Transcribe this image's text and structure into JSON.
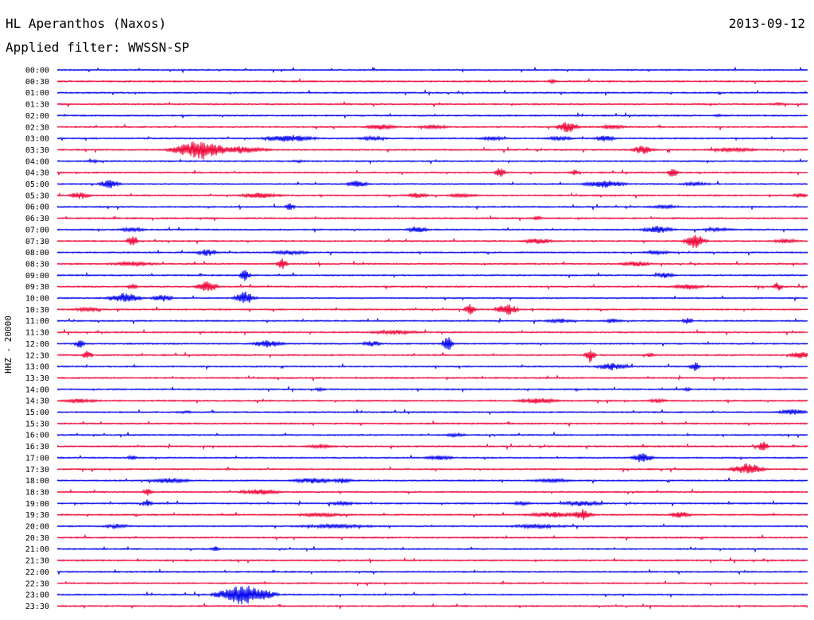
{
  "header": {
    "station": "HL Aperanthos (Naxos)",
    "date": "2013-09-12",
    "filter": "Applied filter: WWSSN-SP"
  },
  "chart_data": {
    "type": "line",
    "title": "HL Aperanthos (Naxos)",
    "ylabel": "HHZ - 20000",
    "colors": {
      "blue": "#0000ee",
      "red": "#ee0033"
    },
    "rows": [
      {
        "time": "00:00",
        "color": "blue",
        "events": []
      },
      {
        "time": "00:30",
        "color": "red",
        "events": [
          {
            "x": 0.66,
            "amp": 3,
            "w": 0.01
          }
        ]
      },
      {
        "time": "01:00",
        "color": "blue",
        "events": []
      },
      {
        "time": "01:30",
        "color": "red",
        "events": [
          {
            "x": 0.96,
            "amp": 2,
            "w": 0.02
          }
        ]
      },
      {
        "time": "02:00",
        "color": "blue",
        "events": [
          {
            "x": 0.88,
            "amp": 2,
            "w": 0.01
          }
        ]
      },
      {
        "time": "02:30",
        "color": "red",
        "events": [
          {
            "x": 0.43,
            "amp": 4,
            "w": 0.03
          },
          {
            "x": 0.5,
            "amp": 3,
            "w": 0.03
          },
          {
            "x": 0.68,
            "amp": 8,
            "w": 0.02
          },
          {
            "x": 0.74,
            "amp": 3,
            "w": 0.03
          }
        ]
      },
      {
        "time": "03:00",
        "color": "blue",
        "events": [
          {
            "x": 0.31,
            "amp": 5,
            "w": 0.05
          },
          {
            "x": 0.42,
            "amp": 3,
            "w": 0.03
          },
          {
            "x": 0.58,
            "amp": 3,
            "w": 0.03
          },
          {
            "x": 0.67,
            "amp": 3,
            "w": 0.03
          },
          {
            "x": 0.73,
            "amp": 4,
            "w": 0.02
          }
        ]
      },
      {
        "time": "03:30",
        "color": "red",
        "events": [
          {
            "x": 0.19,
            "amp": 14,
            "w": 0.05
          },
          {
            "x": 0.245,
            "amp": 5,
            "w": 0.05
          },
          {
            "x": 0.78,
            "amp": 6,
            "w": 0.02
          },
          {
            "x": 0.9,
            "amp": 3,
            "w": 0.05
          }
        ]
      },
      {
        "time": "04:00",
        "color": "blue",
        "events": [
          {
            "x": 0.05,
            "amp": 2,
            "w": 0.02
          },
          {
            "x": 0.32,
            "amp": 2,
            "w": 0.02
          }
        ]
      },
      {
        "time": "04:30",
        "color": "red",
        "events": [
          {
            "x": 0.59,
            "amp": 8,
            "w": 0.01
          },
          {
            "x": 0.69,
            "amp": 4,
            "w": 0.01
          },
          {
            "x": 0.82,
            "amp": 7,
            "w": 0.01
          }
        ]
      },
      {
        "time": "05:00",
        "color": "blue",
        "events": [
          {
            "x": 0.07,
            "amp": 6,
            "w": 0.02
          },
          {
            "x": 0.4,
            "amp": 5,
            "w": 0.02
          },
          {
            "x": 0.73,
            "amp": 5,
            "w": 0.04
          },
          {
            "x": 0.85,
            "amp": 3,
            "w": 0.03
          }
        ]
      },
      {
        "time": "05:30",
        "color": "red",
        "events": [
          {
            "x": 0.03,
            "amp": 5,
            "w": 0.02
          },
          {
            "x": 0.27,
            "amp": 4,
            "w": 0.04
          },
          {
            "x": 0.48,
            "amp": 4,
            "w": 0.02
          },
          {
            "x": 0.54,
            "amp": 3,
            "w": 0.03
          },
          {
            "x": 0.99,
            "amp": 3,
            "w": 0.02
          }
        ]
      },
      {
        "time": "06:00",
        "color": "blue",
        "events": [
          {
            "x": 0.31,
            "amp": 5,
            "w": 0.01
          },
          {
            "x": 0.81,
            "amp": 3,
            "w": 0.03
          }
        ]
      },
      {
        "time": "06:30",
        "color": "red",
        "events": [
          {
            "x": 0.64,
            "amp": 3,
            "w": 0.01
          }
        ]
      },
      {
        "time": "07:00",
        "color": "blue",
        "events": [
          {
            "x": 0.1,
            "amp": 3,
            "w": 0.03
          },
          {
            "x": 0.48,
            "amp": 5,
            "w": 0.02
          },
          {
            "x": 0.8,
            "amp": 5,
            "w": 0.03
          },
          {
            "x": 0.88,
            "amp": 3,
            "w": 0.03
          }
        ]
      },
      {
        "time": "07:30",
        "color": "red",
        "events": [
          {
            "x": 0.1,
            "amp": 10,
            "w": 0.01
          },
          {
            "x": 0.64,
            "amp": 4,
            "w": 0.03
          },
          {
            "x": 0.85,
            "amp": 10,
            "w": 0.02
          },
          {
            "x": 0.97,
            "amp": 3,
            "w": 0.03
          }
        ]
      },
      {
        "time": "08:00",
        "color": "blue",
        "events": [
          {
            "x": 0.2,
            "amp": 5,
            "w": 0.02
          },
          {
            "x": 0.31,
            "amp": 3,
            "w": 0.04
          },
          {
            "x": 0.8,
            "amp": 3,
            "w": 0.03
          }
        ]
      },
      {
        "time": "08:30",
        "color": "red",
        "events": [
          {
            "x": 0.1,
            "amp": 3,
            "w": 0.05
          },
          {
            "x": 0.3,
            "amp": 8,
            "w": 0.01
          },
          {
            "x": 0.77,
            "amp": 4,
            "w": 0.03
          }
        ]
      },
      {
        "time": "09:00",
        "color": "blue",
        "events": [
          {
            "x": 0.25,
            "amp": 8,
            "w": 0.01
          },
          {
            "x": 0.81,
            "amp": 4,
            "w": 0.02
          }
        ]
      },
      {
        "time": "09:30",
        "color": "red",
        "events": [
          {
            "x": 0.1,
            "amp": 4,
            "w": 0.01
          },
          {
            "x": 0.2,
            "amp": 8,
            "w": 0.02
          },
          {
            "x": 0.84,
            "amp": 4,
            "w": 0.03
          },
          {
            "x": 0.96,
            "amp": 6,
            "w": 0.01
          }
        ]
      },
      {
        "time": "10:00",
        "color": "blue",
        "events": [
          {
            "x": 0.09,
            "amp": 7,
            "w": 0.03
          },
          {
            "x": 0.14,
            "amp": 5,
            "w": 0.02
          },
          {
            "x": 0.25,
            "amp": 9,
            "w": 0.02
          }
        ]
      },
      {
        "time": "10:30",
        "color": "red",
        "events": [
          {
            "x": 0.04,
            "amp": 3,
            "w": 0.03
          },
          {
            "x": 0.55,
            "amp": 8,
            "w": 0.01
          },
          {
            "x": 0.6,
            "amp": 8,
            "w": 0.02
          }
        ]
      },
      {
        "time": "11:00",
        "color": "blue",
        "events": [
          {
            "x": 0.67,
            "amp": 3,
            "w": 0.03
          },
          {
            "x": 0.74,
            "amp": 3,
            "w": 0.02
          },
          {
            "x": 0.84,
            "amp": 5,
            "w": 0.01
          }
        ]
      },
      {
        "time": "11:30",
        "color": "red",
        "events": [
          {
            "x": 0.45,
            "amp": 3,
            "w": 0.05
          }
        ]
      },
      {
        "time": "12:00",
        "color": "blue",
        "events": [
          {
            "x": 0.03,
            "amp": 6,
            "w": 0.01
          },
          {
            "x": 0.28,
            "amp": 5,
            "w": 0.03
          },
          {
            "x": 0.42,
            "amp": 4,
            "w": 0.02
          },
          {
            "x": 0.52,
            "amp": 11,
            "w": 0.01
          }
        ]
      },
      {
        "time": "12:30",
        "color": "red",
        "events": [
          {
            "x": 0.04,
            "amp": 6,
            "w": 0.01
          },
          {
            "x": 0.71,
            "amp": 10,
            "w": 0.01
          },
          {
            "x": 0.79,
            "amp": 3,
            "w": 0.01
          },
          {
            "x": 0.99,
            "amp": 5,
            "w": 0.02
          }
        ]
      },
      {
        "time": "13:00",
        "color": "blue",
        "events": [
          {
            "x": 0.74,
            "amp": 5,
            "w": 0.03
          },
          {
            "x": 0.85,
            "amp": 6,
            "w": 0.01
          }
        ]
      },
      {
        "time": "13:30",
        "color": "red",
        "events": []
      },
      {
        "time": "14:00",
        "color": "blue",
        "events": [
          {
            "x": 0.35,
            "amp": 3,
            "w": 0.01
          },
          {
            "x": 0.84,
            "amp": 3,
            "w": 0.01
          }
        ]
      },
      {
        "time": "14:30",
        "color": "red",
        "events": [
          {
            "x": 0.03,
            "amp": 3,
            "w": 0.04
          },
          {
            "x": 0.64,
            "amp": 4,
            "w": 0.04
          },
          {
            "x": 0.8,
            "amp": 3,
            "w": 0.02
          }
        ]
      },
      {
        "time": "15:00",
        "color": "blue",
        "events": [
          {
            "x": 0.17,
            "amp": 2,
            "w": 0.02
          },
          {
            "x": 0.98,
            "amp": 4,
            "w": 0.03
          }
        ]
      },
      {
        "time": "15:30",
        "color": "red",
        "events": []
      },
      {
        "time": "16:00",
        "color": "blue",
        "events": [
          {
            "x": 0.53,
            "amp": 3,
            "w": 0.02
          }
        ]
      },
      {
        "time": "16:30",
        "color": "red",
        "events": [
          {
            "x": 0.35,
            "amp": 3,
            "w": 0.03
          },
          {
            "x": 0.94,
            "amp": 8,
            "w": 0.01
          }
        ]
      },
      {
        "time": "17:00",
        "color": "blue",
        "events": [
          {
            "x": 0.1,
            "amp": 4,
            "w": 0.01
          },
          {
            "x": 0.51,
            "amp": 3,
            "w": 0.03
          },
          {
            "x": 0.78,
            "amp": 7,
            "w": 0.02
          }
        ]
      },
      {
        "time": "17:30",
        "color": "red",
        "events": [
          {
            "x": 0.92,
            "amp": 8,
            "w": 0.03
          }
        ]
      },
      {
        "time": "18:00",
        "color": "blue",
        "events": [
          {
            "x": 0.15,
            "amp": 4,
            "w": 0.04
          },
          {
            "x": 0.34,
            "amp": 4,
            "w": 0.04
          },
          {
            "x": 0.38,
            "amp": 4,
            "w": 0.02
          },
          {
            "x": 0.66,
            "amp": 3,
            "w": 0.04
          }
        ]
      },
      {
        "time": "18:30",
        "color": "red",
        "events": [
          {
            "x": 0.12,
            "amp": 5,
            "w": 0.01
          },
          {
            "x": 0.27,
            "amp": 4,
            "w": 0.04
          }
        ]
      },
      {
        "time": "19:00",
        "color": "blue",
        "events": [
          {
            "x": 0.12,
            "amp": 5,
            "w": 0.01
          },
          {
            "x": 0.38,
            "amp": 3,
            "w": 0.03
          },
          {
            "x": 0.62,
            "amp": 3,
            "w": 0.02
          },
          {
            "x": 0.7,
            "amp": 4,
            "w": 0.04
          }
        ]
      },
      {
        "time": "19:30",
        "color": "red",
        "events": [
          {
            "x": 0.35,
            "amp": 3,
            "w": 0.05
          },
          {
            "x": 0.66,
            "amp": 4,
            "w": 0.05
          },
          {
            "x": 0.7,
            "amp": 8,
            "w": 0.02
          },
          {
            "x": 0.83,
            "amp": 5,
            "w": 0.02
          }
        ]
      },
      {
        "time": "20:00",
        "color": "blue",
        "events": [
          {
            "x": 0.08,
            "amp": 3,
            "w": 0.03
          },
          {
            "x": 0.37,
            "amp": 3,
            "w": 0.08
          },
          {
            "x": 0.64,
            "amp": 3,
            "w": 0.06
          }
        ]
      },
      {
        "time": "20:30",
        "color": "red",
        "events": []
      },
      {
        "time": "21:00",
        "color": "blue",
        "events": [
          {
            "x": 0.21,
            "amp": 4,
            "w": 0.01
          }
        ]
      },
      {
        "time": "21:30",
        "color": "red",
        "events": []
      },
      {
        "time": "22:00",
        "color": "blue",
        "events": []
      },
      {
        "time": "22:30",
        "color": "red",
        "events": []
      },
      {
        "time": "23:00",
        "color": "blue",
        "events": [
          {
            "x": 0.25,
            "amp": 14,
            "w": 0.05
          }
        ]
      },
      {
        "time": "23:30",
        "color": "red",
        "events": []
      }
    ]
  }
}
